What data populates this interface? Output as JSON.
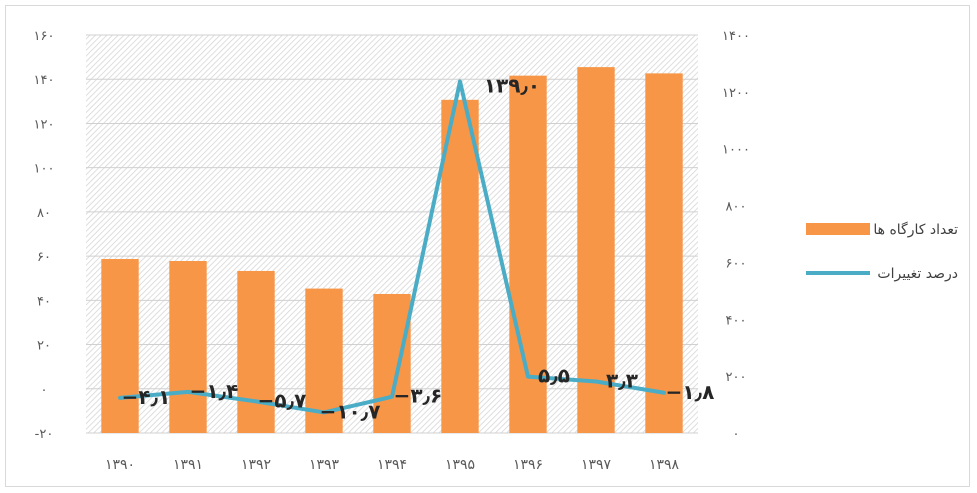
{
  "chart_data": {
    "type": "bar",
    "categories": [
      "۱۳۹۰",
      "۱۳۹۱",
      "۱۳۹۲",
      "۱۳۹۳",
      "۱۳۹۴",
      "۱۳۹۵",
      "۱۳۹۶",
      "۱۳۹۷",
      "۱۳۹۸"
    ],
    "series": [
      {
        "name": "تعداد کارگاه ها",
        "type": "bar",
        "axis": "right",
        "color": "#F79646",
        "values": [
          612,
          605,
          570,
          508,
          489,
          1172,
          1257,
          1287,
          1265
        ]
      },
      {
        "name": "درصد تغییرات",
        "type": "line",
        "axis": "left",
        "color": "#4BACC6",
        "values": [
          -4.1,
          -1.4,
          -5.7,
          -10.7,
          -3.6,
          139.0,
          5.5,
          3.3,
          -1.8
        ],
        "data_labels": [
          "−۴٫۱",
          "−۱٫۴",
          "−۵٫۷",
          "−۱۰٫۷",
          "−۳٫۶",
          "۱۳۹٫۰",
          "۵٫۵",
          "۳٫۳",
          "−۱٫۸"
        ]
      }
    ],
    "left_axis": {
      "ylim": [
        -20,
        160
      ],
      "ticks": [
        -20,
        0,
        20,
        40,
        60,
        80,
        100,
        120,
        140,
        160
      ],
      "tick_labels": [
        "-۲۰",
        "۰",
        "۲۰",
        "۴۰",
        "۶۰",
        "۸۰",
        "۱۰۰",
        "۱۲۰",
        "۱۴۰",
        "۱۶۰"
      ]
    },
    "right_axis": {
      "ylim": [
        0,
        1400
      ],
      "ticks": [
        0,
        200,
        400,
        600,
        800,
        1000,
        1200,
        1400
      ],
      "tick_labels": [
        "۰",
        "۲۰۰",
        "۴۰۰",
        "۶۰۰",
        "۸۰۰",
        "۱۰۰۰",
        "۱۲۰۰",
        "۱۴۰۰"
      ]
    },
    "grid": true,
    "plot_background": "hatched",
    "legend": {
      "position": "right",
      "entries": [
        "تعداد کارگاه ها",
        "درصد تغییرات"
      ]
    },
    "title": "",
    "xlabel": "",
    "ylabel": ""
  }
}
